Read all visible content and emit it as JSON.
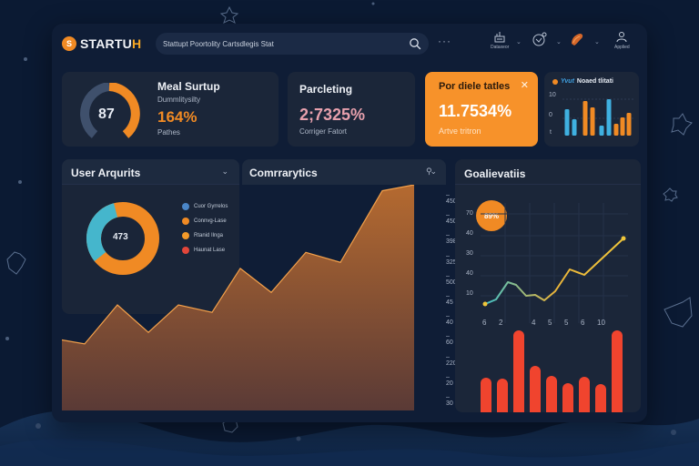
{
  "app": {
    "logo_text": "STARTU",
    "logo_text_accent": "H",
    "logo_badge": "S"
  },
  "search": {
    "placeholder": "Stattupt Poortolity Cartsdlegis Stat"
  },
  "topbar": {
    "more_label": "···",
    "icons": [
      {
        "name": "database-icon",
        "label": "Dataxeor"
      },
      {
        "name": "globe-icon",
        "label": ""
      },
      {
        "name": "fire-icon",
        "label": ""
      },
      {
        "name": "user-icon",
        "label": "Applied"
      }
    ]
  },
  "kpi_cards": [
    {
      "title": "Meal Surtup",
      "subtitle": "Dummlitysilty",
      "gauge_value": "87",
      "gauge_percent": 55,
      "value": "164%",
      "footer": "Pathes",
      "value_color": "#f08a24"
    },
    {
      "title": "Parcleting",
      "value": "2;7325%",
      "footer": "Corriger Fatort",
      "value_color": "#e7a0ad"
    },
    {
      "title": "Por diele tatles",
      "value": "11.7534%",
      "footer": "Artve tritron",
      "close_label": "✕",
      "bg_color": "#f7922a"
    }
  ],
  "mini_chart": {
    "title_accent": "Yvut",
    "title": "Noaed tlitati",
    "y_ticks": [
      "10",
      "0",
      "t"
    ]
  },
  "user_activity": {
    "title": "User Arqurits",
    "center_value": "473",
    "legend": [
      {
        "label": "Cuor Gyrrelos",
        "color": "#4a86c8"
      },
      {
        "label": "Connvg-Lase",
        "color": "#f08a24"
      },
      {
        "label": "Rtanid Ilnga",
        "color": "#f39a2a"
      },
      {
        "label": "Haunat Lase",
        "color": "#e2463a"
      }
    ]
  },
  "analytics": {
    "title": "Comrrarytics",
    "y_ticks": [
      "450",
      "450",
      "398",
      "325",
      "500",
      "45",
      "40",
      "60",
      "220",
      "20",
      "30"
    ]
  },
  "goal": {
    "title": "Goalievatiis",
    "badge": "89%",
    "y_ticks": [
      "70",
      "40",
      "30",
      "40",
      "10"
    ],
    "bar_labels": [
      "6",
      "2",
      "",
      "4",
      "5",
      "5",
      "6",
      "10",
      ""
    ]
  },
  "chart_data": [
    {
      "type": "pie",
      "title": "User Arqurits",
      "center_label": "473",
      "categories": [
        "Cuor Gyrrelos",
        "Connvg-Lase",
        "Rtanid Ilnga",
        "Haunat Lase"
      ],
      "values": [
        35,
        65,
        0,
        0
      ]
    },
    {
      "type": "area",
      "title": "Comrrarytics",
      "x": [
        1,
        2,
        3,
        4,
        5,
        6,
        7,
        8,
        9,
        10,
        11,
        12
      ],
      "values": [
        90,
        82,
        160,
        105,
        160,
        145,
        233,
        185,
        265,
        245,
        388,
        400
      ]
    },
    {
      "type": "line",
      "title": "Goalievatiis",
      "y_ticks": [
        10,
        40,
        30,
        40,
        70
      ],
      "values": [
        10,
        14,
        35,
        30,
        20,
        21,
        12,
        26,
        47,
        43,
        72
      ]
    },
    {
      "type": "bar",
      "title": "Goalievatiis",
      "categories": [
        "6",
        "2",
        "",
        "4",
        "5",
        "5",
        "6",
        "10",
        ""
      ],
      "values": [
        51,
        50,
        103,
        64,
        53,
        45,
        52,
        44,
        103
      ]
    },
    {
      "type": "bar",
      "title": "Yvut Noaed tlitati",
      "values": [
        29,
        18,
        38,
        31,
        11,
        40,
        13,
        20,
        25
      ],
      "colors": [
        "#3fb0e0",
        "#3fb0e0",
        "#f08a24",
        "#f08a24",
        "#3fb0e0",
        "#3fb0e0",
        "#f08a24",
        "#f08a24",
        "#f08a24"
      ]
    }
  ]
}
